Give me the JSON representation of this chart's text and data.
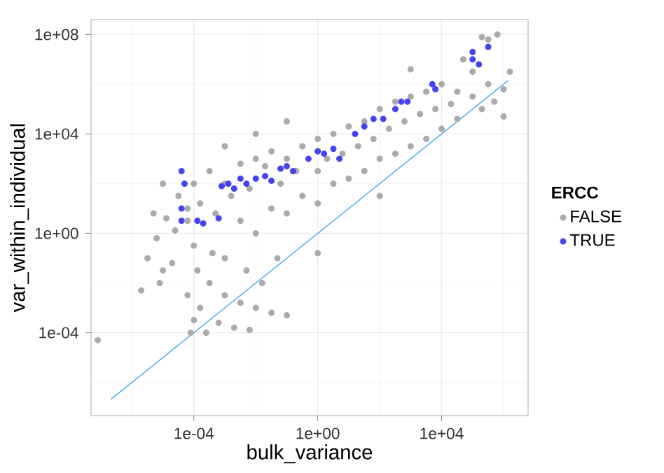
{
  "chart_data": {
    "type": "scatter",
    "xlabel": "bulk_variance",
    "ylabel": "var_within_individual",
    "legend_title": "ERCC",
    "log": "xy",
    "grid": true,
    "legend": "right",
    "xlim": [
      4.8e-08,
      6200000.0
    ],
    "ylim": [
      4.6e-08,
      400000000.0
    ],
    "xticks": [
      {
        "value": 0.0001,
        "label": "1e-04"
      },
      {
        "value": 1,
        "label": "1e+00"
      },
      {
        "value": 10000,
        "label": "1e+04"
      }
    ],
    "yticks": [
      {
        "value": 0.0001,
        "label": "1e-04"
      },
      {
        "value": 1,
        "label": "1e+00"
      },
      {
        "value": 10000,
        "label": "1e+04"
      },
      {
        "value": 100000000,
        "label": "1e+08"
      }
    ],
    "series": [
      {
        "name": "FALSE",
        "color": "#aaaaaa",
        "x": [
          7.9e-08,
          2e-06,
          3.2e-06,
          6.3e-06,
          1e-05,
          1.3e-05,
          2.5e-05,
          5e-06,
          2e-05,
          7.9e-06,
          7.9e-05,
          0.0001,
          6.3e-05,
          0.00013,
          0.0001,
          6.3e-05,
          0.00016,
          0.00025,
          0.00032,
          0.0004,
          0.00063,
          0.001,
          0.001,
          0.002,
          0.0032,
          0.005,
          0.01,
          0.016,
          0.0063,
          0.032,
          0.1,
          0.05,
          3.2e-05,
          6.3e-05,
          0.0001,
          0.00016,
          0.00032,
          0.0005,
          0.001,
          0.0016,
          0.0032,
          0.0032,
          0.0063,
          0.01,
          0.01,
          0.02,
          0.032,
          0.032,
          0.063,
          0.1,
          0.1,
          0.2,
          0.32,
          0.32,
          1,
          1,
          1,
          2,
          3.2,
          3.2,
          6.3,
          10,
          10,
          20,
          32,
          32,
          63,
          100,
          100,
          200,
          320,
          320,
          630,
          1000,
          1000,
          2000,
          3200,
          3200,
          6300,
          10000.0,
          10000.0,
          20000.0,
          32000.0,
          32000.0,
          100000.0,
          100000.0,
          200000.0,
          320000.0,
          500000.0,
          1000000.0,
          1600000.0,
          1000000.0,
          630000.0,
          200000.0,
          320000.0,
          50000.0,
          1000,
          0.01,
          0.1,
          0.001,
          1e-05,
          100,
          1
        ],
        "values": [
          5e-05,
          0.005,
          0.1,
          0.63,
          0.032,
          4,
          1.3,
          6.3,
          0.063,
          0.01,
          0.0001,
          0.00032,
          0.0032,
          0.032,
          0.32,
          3.2,
          0.001,
          0.0001,
          0.01,
          0.16,
          0.00025,
          0.0032,
          0.1,
          0.00016,
          0.0016,
          0.032,
          0.001,
          0.01,
          0.00013,
          0.00063,
          0.0005,
          0.1,
          32,
          10,
          100,
          16,
          320,
          6.3,
          100,
          32,
          630,
          3.2,
          63,
          1000,
          1,
          500,
          10,
          2000,
          100,
          1000,
          6.3,
          320,
          3200,
          32,
          320,
          6300,
          16,
          1000,
          10000.0,
          100,
          1600,
          20000.0,
          160,
          3200,
          32000.0,
          320,
          6300,
          100000.0,
          1000,
          16000.0,
          200000.0,
          1600,
          32000.0,
          320000.0,
          3200,
          63000.0,
          500000.0,
          6300,
          100000.0,
          1000000.0,
          16000.0,
          160000.0,
          500000.0,
          40000.0,
          320000.0,
          3200000.0,
          100000.0,
          1000000.0,
          200000.0,
          630000.0,
          3200000.0,
          50000.0,
          100000000.0,
          79000000.0,
          63000000.0,
          10000000.0,
          4000000.0,
          10000.0,
          32000.0,
          3200,
          100,
          32,
          0.16
        ]
      },
      {
        "name": "TRUE",
        "color": "#4444ee",
        "x": [
          4e-05,
          4e-05,
          5e-05,
          4e-05,
          0.00013,
          0.0002,
          0.00063,
          0.00079,
          0.0013,
          0.002,
          0.0032,
          0.005,
          0.01,
          0.02,
          0.032,
          0.063,
          0.1,
          0.16,
          0.5,
          1,
          1.6,
          3.2,
          5,
          16,
          32,
          63,
          130,
          320,
          500,
          790,
          5000,
          6300,
          100000.0,
          100000.0,
          160000.0,
          320000.0
        ],
        "values": [
          3.2,
          10,
          100,
          320,
          3.2,
          2.5,
          4,
          79,
          100,
          63,
          160,
          100,
          160,
          200,
          130,
          400,
          500,
          320,
          1000,
          2000,
          1600,
          2500,
          1000,
          10000.0,
          20000.0,
          40000.0,
          40000.0,
          100000.0,
          200000.0,
          200000.0,
          1000000.0,
          630000.0,
          20000000.0,
          10000000.0,
          6300000.0,
          32000000.0
        ]
      },
      {
        "type": "line",
        "color": "#56b4e9",
        "x": [
          2.1e-07,
          1400000.0
        ],
        "values": [
          2.1e-07,
          1400000.0
        ]
      }
    ]
  }
}
